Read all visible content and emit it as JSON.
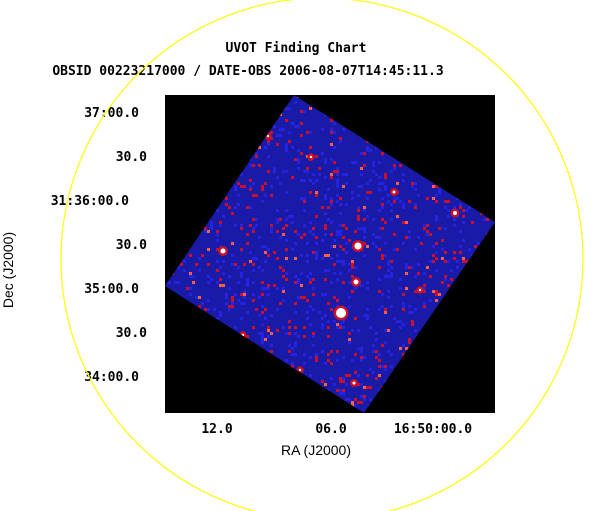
{
  "chart_data": {
    "type": "image",
    "title": "UVOT Finding Chart",
    "subtitle": "OBSID 00223217000 / DATE-OBS 2006-08-07T14:45:11.3",
    "xlabel": "RA (J2000)",
    "ylabel": "Dec (J2000)",
    "x_ticks": [
      "12.0",
      "06.0",
      "16:50:00.0"
    ],
    "y_ticks": [
      "37:00.0",
      "30.0",
      "31:36:00.0",
      "30.0",
      "35:00.0",
      "30.0",
      "34:00.0"
    ],
    "overlay_circle": "yes",
    "colors": {
      "background": "#000000",
      "field": "#1a1aa8",
      "noise_low": "#2424e0",
      "noise_high": "#c8102a",
      "star": "#ffffff",
      "circle": "#ffff00"
    }
  }
}
